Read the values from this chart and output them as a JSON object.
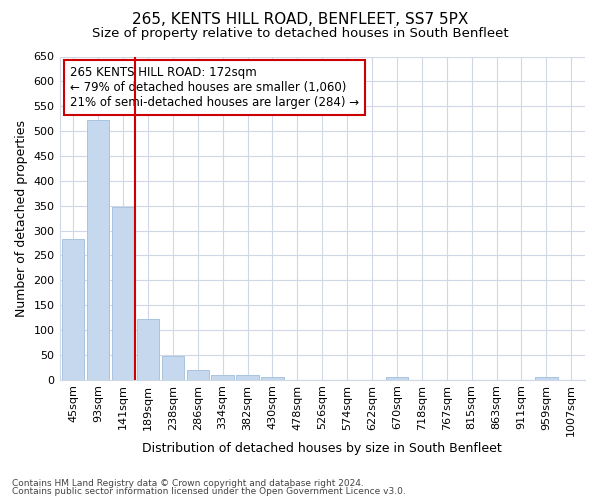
{
  "title1": "265, KENTS HILL ROAD, BENFLEET, SS7 5PX",
  "title2": "Size of property relative to detached houses in South Benfleet",
  "xlabel": "Distribution of detached houses by size in South Benfleet",
  "ylabel": "Number of detached properties",
  "categories": [
    "45sqm",
    "93sqm",
    "141sqm",
    "189sqm",
    "238sqm",
    "286sqm",
    "334sqm",
    "382sqm",
    "430sqm",
    "478sqm",
    "526sqm",
    "574sqm",
    "622sqm",
    "670sqm",
    "718sqm",
    "767sqm",
    "815sqm",
    "863sqm",
    "911sqm",
    "959sqm",
    "1007sqm"
  ],
  "values": [
    283,
    523,
    348,
    122,
    48,
    19,
    10,
    10,
    6,
    0,
    0,
    0,
    0,
    6,
    0,
    0,
    0,
    0,
    0,
    6,
    0
  ],
  "bar_color": "#c5d8ed",
  "bar_edge_color": "#a8c4e0",
  "vline_color": "#cc0000",
  "annotation_text": "265 KENTS HILL ROAD: 172sqm\n← 79% of detached houses are smaller (1,060)\n21% of semi-detached houses are larger (284) →",
  "annotation_box_color": "#ffffff",
  "annotation_box_edge": "#cc0000",
  "ylim": [
    0,
    650
  ],
  "yticks": [
    0,
    50,
    100,
    150,
    200,
    250,
    300,
    350,
    400,
    450,
    500,
    550,
    600,
    650
  ],
  "footer1": "Contains HM Land Registry data © Crown copyright and database right 2024.",
  "footer2": "Contains public sector information licensed under the Open Government Licence v3.0.",
  "bg_color": "#ffffff",
  "plot_bg_color": "#ffffff",
  "grid_color": "#d0d8e8",
  "title1_fontsize": 11,
  "title2_fontsize": 9.5,
  "tick_fontsize": 8,
  "label_fontsize": 9,
  "annotation_fontsize": 8.5
}
